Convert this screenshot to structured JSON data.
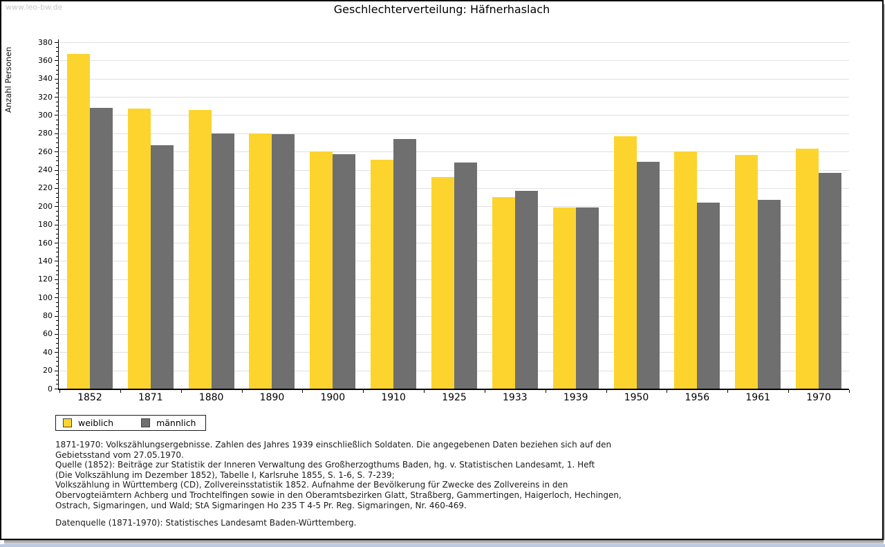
{
  "watermark": "www.leo-bw.de",
  "title": "Geschlechterverteilung: Häfnerhaslach",
  "chart_data": {
    "type": "bar",
    "title": "Geschlechterverteilung: Häfnerhaslach",
    "xlabel": "",
    "ylabel": "Anzahl Personen",
    "ylim": [
      0,
      380
    ],
    "ytick_step": 20,
    "yminor_step": 5,
    "grid": true,
    "legend_position": "bottom-left",
    "categories": [
      "1852",
      "1871",
      "1880",
      "1890",
      "1900",
      "1910",
      "1925",
      "1933",
      "1939",
      "1950",
      "1956",
      "1961",
      "1970"
    ],
    "series": [
      {
        "name": "weiblich",
        "color": "#fcd42d",
        "values": [
          367,
          307,
          306,
          280,
          260,
          251,
          232,
          210,
          199,
          277,
          260,
          256,
          263
        ]
      },
      {
        "name": "männlich",
        "color": "#6f6f6f",
        "values": [
          308,
          267,
          280,
          279,
          257,
          274,
          248,
          217,
          199,
          249,
          204,
          207,
          237
        ]
      }
    ]
  },
  "colors": {
    "weiblich": "#fcd42d",
    "maennlich": "#6f6f6f",
    "gridline": "#e0e0e0",
    "bottom_strip": "#bdc9e4"
  },
  "notes": {
    "lines": [
      "1871-1970: Volkszählungsergebnisse. Zahlen des Jahres 1939 einschließlich Soldaten. Die angegebenen Daten beziehen sich auf den",
      "Gebietsstand vom 27.05.1970.",
      "Quelle (1852): Beiträge zur Statistik der Inneren Verwaltung des Großherzogthums Baden, hg. v. Statistischen Landesamt, 1. Heft",
      "(Die Volkszählung im Dezember 1852), Tabelle I, Karlsruhe 1855, S. 1-6, S. 7-239;",
      "Volkszählung in Württemberg (CD), Zollvereinsstatistik 1852. Aufnahme der Bevölkerung für Zwecke des Zollvereins in den",
      "Obervogteiämtern Achberg und Trochtelfingen sowie in den Oberamtsbezirken Glatt, Straßberg, Gammertingen, Haigerloch, Hechingen,",
      "Ostrach, Sigmaringen, und Wald; StA Sigmaringen Ho 235 T 4-5 Pr. Reg. Sigmaringen, Nr. 460-469."
    ],
    "datasource": "Datenquelle (1871-1970): Statistisches Landesamt Baden-Württemberg."
  }
}
